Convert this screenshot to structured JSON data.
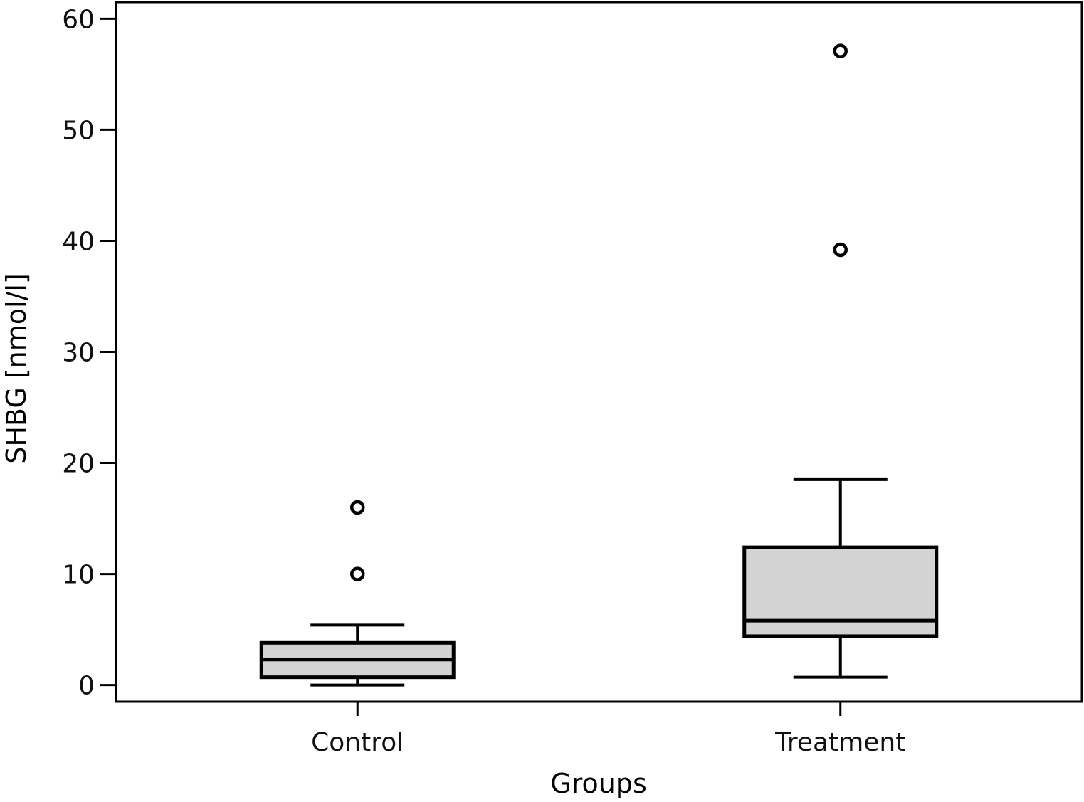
{
  "chart_data": {
    "type": "box",
    "xlabel": "Groups",
    "ylabel": "SHBG [nmol/l]",
    "ylim": [
      -1.5,
      61.5
    ],
    "yticks": [
      0,
      10,
      20,
      30,
      40,
      50,
      60
    ],
    "categories": [
      "Control",
      "Treatment"
    ],
    "boxes": [
      {
        "category": "Control",
        "whisker_low": 0,
        "q1": 0.7,
        "median": 2.3,
        "q3": 3.8,
        "whisker_high": 5.4,
        "outliers": [
          10,
          16
        ]
      },
      {
        "category": "Treatment",
        "whisker_low": 0.7,
        "q1": 4.4,
        "median": 5.8,
        "q3": 12.4,
        "whisker_high": 18.5,
        "outliers": [
          39.2,
          57.1
        ]
      }
    ],
    "grid": false,
    "legend": false
  },
  "colors": {
    "box_fill": "#d3d3d3",
    "stroke": "#000000",
    "background": "#ffffff"
  }
}
